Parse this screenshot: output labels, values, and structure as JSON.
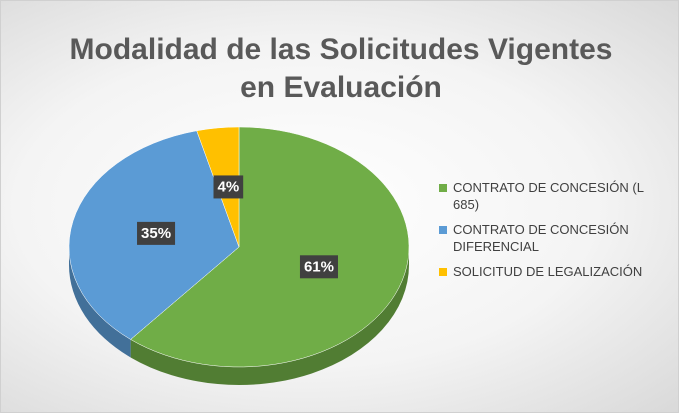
{
  "chart_data": {
    "type": "pie",
    "title": "Modalidad de las Solicitudes Vigentes en Evaluación",
    "categories": [
      "CONTRATO DE CONCESIÓN (L 685)",
      "CONTRATO DE CONCESIÓN DIFERENCIAL",
      "SOLICITUD DE LEGALIZACIÓN"
    ],
    "values": [
      61,
      35,
      4
    ],
    "value_labels": [
      "61%",
      "35%",
      "4%"
    ],
    "colors": [
      "#70ad47",
      "#5b9bd5",
      "#ffc000"
    ],
    "legend": "right"
  }
}
